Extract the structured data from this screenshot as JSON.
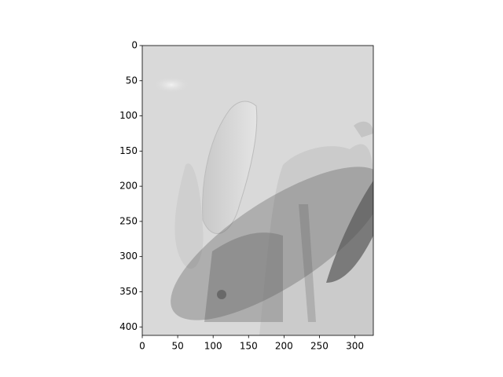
{
  "chart_data": {
    "type": "image",
    "xlim": [
      0,
      326
    ],
    "ylim": [
      412,
      0
    ],
    "xticks": [
      0,
      50,
      100,
      150,
      200,
      250,
      300
    ],
    "yticks": [
      0,
      50,
      100,
      150,
      200,
      250,
      300,
      350,
      400
    ]
  }
}
